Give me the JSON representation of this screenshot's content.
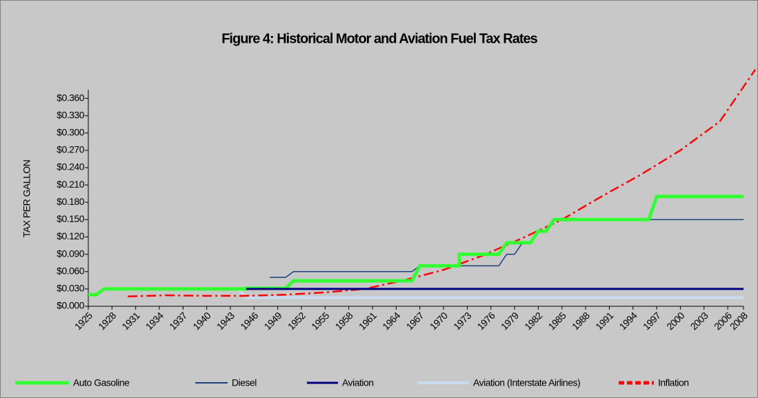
{
  "chart_data": {
    "type": "line",
    "title": "Figure 4:  Historical Motor and Aviation Fuel Tax Rates",
    "y_label": "TAX PER GALLON",
    "xlim": [
      1925,
      2008
    ],
    "xticks": [
      1925,
      1928,
      1931,
      1934,
      1937,
      1940,
      1943,
      1946,
      1949,
      1952,
      1955,
      1958,
      1961,
      1964,
      1967,
      1970,
      1973,
      1976,
      1979,
      1982,
      1985,
      1988,
      1991,
      1994,
      1997,
      2000,
      2003,
      2006,
      2008
    ],
    "ylim": [
      0,
      0.375
    ],
    "yticks": [
      {
        "value": 0,
        "label": "$0.000"
      },
      {
        "value": 0.03,
        "label": "$0.030"
      },
      {
        "value": 0.06,
        "label": "$0.060"
      },
      {
        "value": 0.09,
        "label": "$0.090"
      },
      {
        "value": 0.12,
        "label": "$0.120"
      },
      {
        "value": 0.15,
        "label": "$0.150"
      },
      {
        "value": 0.18,
        "label": "$0.180"
      },
      {
        "value": 0.21,
        "label": "$0.210"
      },
      {
        "value": 0.24,
        "label": "$0.240"
      },
      {
        "value": 0.27,
        "label": "$0.270"
      },
      {
        "value": 0.3,
        "label": "$0.300"
      },
      {
        "value": 0.33,
        "label": "$0.330"
      },
      {
        "value": 0.36,
        "label": "$0.360"
      }
    ],
    "series": [
      {
        "name": "Auto Gasoline",
        "color": "#33ff33",
        "width": 5,
        "x": [
          1925,
          1926,
          1927,
          1945,
          1945,
          1950,
          1951,
          1966,
          1967,
          1972,
          1972,
          1977,
          1978,
          1980,
          1980,
          1981,
          1982,
          1983,
          1984,
          1996,
          1997,
          2008
        ],
        "values": [
          0.02,
          0.02,
          0.03,
          0.03,
          0.031,
          0.031,
          0.044,
          0.044,
          0.07,
          0.07,
          0.09,
          0.09,
          0.11,
          0.11,
          0.11,
          0.11,
          0.13,
          0.13,
          0.15,
          0.15,
          0.19,
          0.19
        ]
      },
      {
        "name": "Diesel",
        "color": "#1f3f7f",
        "width": 1.5,
        "x": [
          1948,
          1950,
          1951,
          1966,
          1967,
          1977,
          1978,
          1979,
          1980,
          1981,
          1982,
          1983,
          1984,
          2008
        ],
        "values": [
          0.05,
          0.05,
          0.06,
          0.06,
          0.07,
          0.07,
          0.09,
          0.09,
          0.11,
          0.11,
          0.13,
          0.13,
          0.15,
          0.15
        ]
      },
      {
        "name": "Aviation",
        "color": "#000080",
        "width": 3,
        "x": [
          1945,
          2008
        ],
        "values": [
          0.03,
          0.03
        ]
      },
      {
        "name": "Aviation (Interstate Airlines)",
        "color": "#c8dcf0",
        "width": 4,
        "x": [
          1930,
          1944,
          1945,
          2008
        ],
        "values": [
          0.03,
          0.03,
          0.015,
          0.015
        ]
      },
      {
        "name": "Inflation",
        "color": "#ff0000",
        "width": 2.5,
        "dash": "dashdot",
        "x": [
          1930,
          1935,
          1940,
          1945,
          1950,
          1955,
          1960,
          1965,
          1970,
          1975,
          1980,
          1985,
          1990,
          1995,
          2000,
          2005,
          2009.5
        ],
        "values": [
          0.017,
          0.019,
          0.018,
          0.018,
          0.02,
          0.024,
          0.03,
          0.045,
          0.063,
          0.088,
          0.118,
          0.15,
          0.19,
          0.228,
          0.27,
          0.32,
          0.41
        ]
      }
    ]
  }
}
